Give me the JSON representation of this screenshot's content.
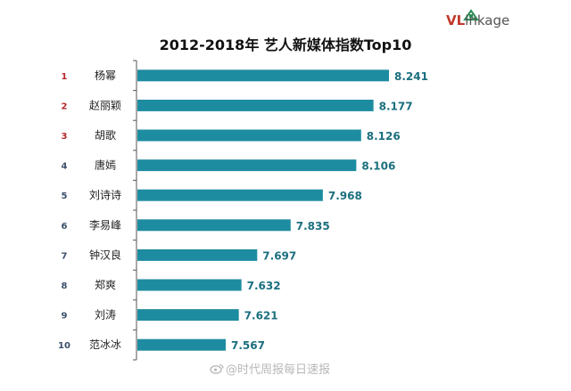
{
  "logo": {
    "v": "V",
    "l": "L",
    "rest": "inkage"
  },
  "watermark": "@时代周报每日速报",
  "colors": {
    "bar": "#1e8ca0",
    "rank_top": "#b3282d",
    "rank_other": "#3a4f6a",
    "value_text": "#1b6f7e"
  },
  "chart_data": {
    "type": "bar",
    "orientation": "horizontal",
    "title": "2012-2018年 艺人新媒体指数Top10",
    "ranks": [
      "1",
      "2",
      "3",
      "4",
      "5",
      "6",
      "7",
      "8",
      "9",
      "10"
    ],
    "categories": [
      "杨幂",
      "赵丽颖",
      "胡歌",
      "唐嫣",
      "刘诗诗",
      "李易峰",
      "钟汉良",
      "郑爽",
      "刘涛",
      "范冰冰"
    ],
    "values": [
      8.241,
      8.177,
      8.126,
      8.106,
      7.968,
      7.835,
      7.697,
      7.632,
      7.621,
      7.567
    ],
    "value_labels": [
      "8.241",
      "8.177",
      "8.126",
      "8.106",
      "7.968",
      "7.835",
      "7.697",
      "7.632",
      "7.621",
      "7.567"
    ],
    "xlabel": "",
    "ylabel": "",
    "grid": false,
    "legend": "none"
  }
}
